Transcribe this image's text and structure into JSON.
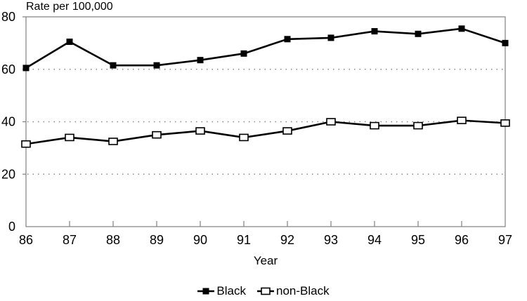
{
  "chart_data": {
    "type": "line",
    "title": "Rate per 100,000",
    "xlabel": "Year",
    "x": [
      "86",
      "87",
      "88",
      "89",
      "90",
      "91",
      "92",
      "93",
      "94",
      "95",
      "96",
      "97"
    ],
    "ylim": [
      0,
      80
    ],
    "yticks": [
      0,
      20,
      40,
      60,
      80
    ],
    "gridlines_y": [
      20,
      40,
      60
    ],
    "grid_style": "dotted",
    "legend_position": "bottom-center",
    "series": [
      {
        "name": "Black",
        "marker": "filled-square",
        "values": [
          60.5,
          70.5,
          61.5,
          61.5,
          63.5,
          66,
          71.5,
          72,
          74.5,
          73.5,
          75.5,
          70
        ]
      },
      {
        "name": "non-Black",
        "marker": "open-square",
        "values": [
          31.5,
          34,
          32.5,
          35,
          36.5,
          34,
          36.5,
          40,
          38.5,
          38.5,
          40.5,
          39.5
        ]
      }
    ],
    "colors": {
      "line": "#000000",
      "frame": "#808080",
      "grid": "#888888",
      "text": "#000000",
      "background": "#ffffff"
    }
  }
}
